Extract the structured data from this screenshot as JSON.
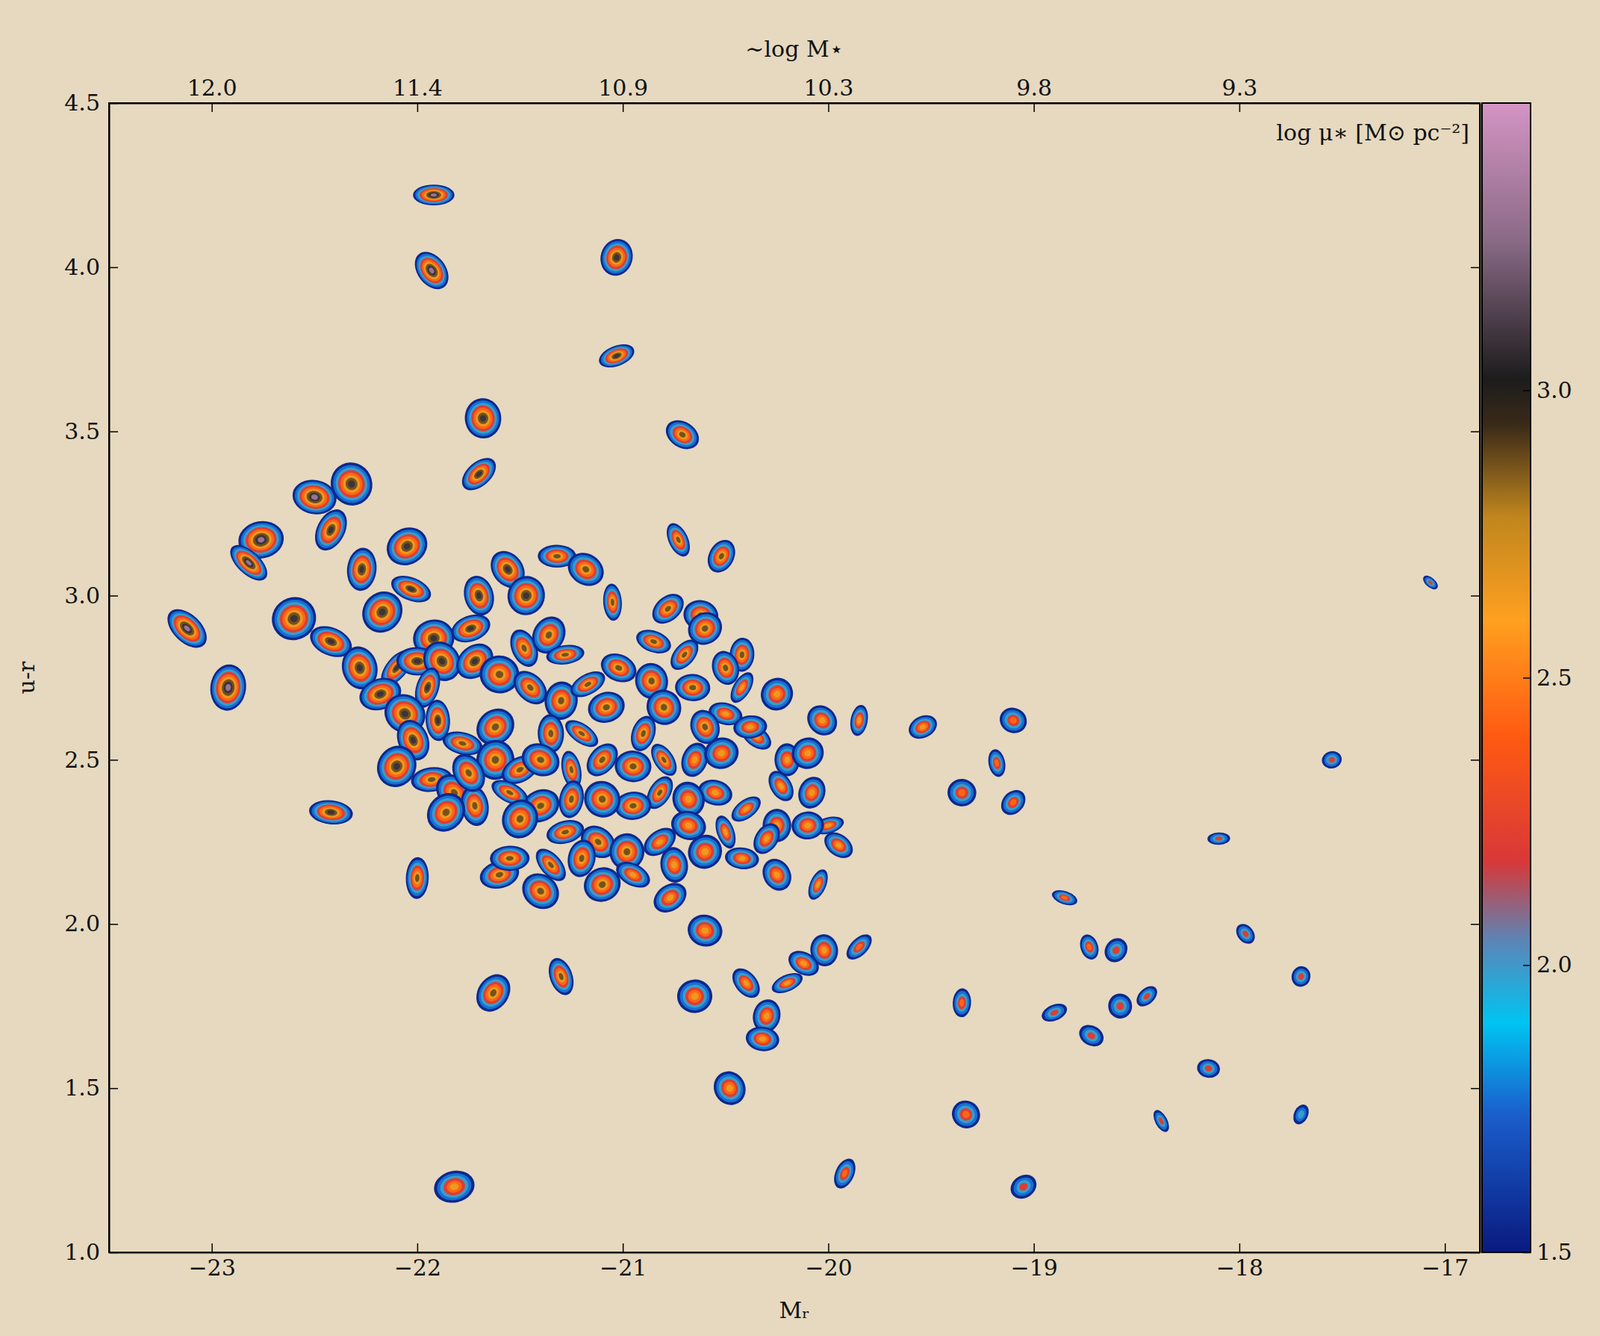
{
  "chart_data": {
    "type": "scatter",
    "xlabel": "Mᵣ",
    "ylabel": "u-r",
    "x2label": "∼log M⋆",
    "xlim": [
      -23.5,
      -16.83
    ],
    "ylim": [
      1.0,
      4.5
    ],
    "xticks": [
      {
        "value": -23,
        "label": "−23"
      },
      {
        "value": -22,
        "label": "−22"
      },
      {
        "value": -21,
        "label": "−21"
      },
      {
        "value": -20,
        "label": "−20"
      },
      {
        "value": -19,
        "label": "−19"
      },
      {
        "value": -18,
        "label": "−18"
      },
      {
        "value": -17,
        "label": "−17"
      }
    ],
    "x2ticks": [
      {
        "value": -23,
        "label": "12.0"
      },
      {
        "value": -22,
        "label": "11.4"
      },
      {
        "value": -21,
        "label": "10.9"
      },
      {
        "value": -20,
        "label": "10.3"
      },
      {
        "value": -19,
        "label": "9.8"
      },
      {
        "value": -18,
        "label": "9.3"
      }
    ],
    "yticks": [
      {
        "value": 1,
        "label": "1.0"
      },
      1.5,
      {
        "value": 2,
        "label": "2.0"
      },
      2.5,
      {
        "value": 3,
        "label": "3.0"
      },
      3.5,
      {
        "value": 4,
        "label": "4.0"
      },
      4.5
    ],
    "colorbar": {
      "label": "log μ∗ [M⊙ pc⁻²]",
      "lim": [
        1.5,
        3.5
      ],
      "ticks": [
        1.5,
        {
          "value": 2,
          "label": "2.0"
        },
        2.5,
        {
          "value": 3,
          "label": "3.0"
        }
      ]
    },
    "series": [
      {
        "marker": "galaxy",
        "x": [
          -21.92,
          -21.93,
          -21.03,
          -21.03,
          -20.71,
          -21.68,
          -21.7,
          -22.5,
          -22.32,
          -22.42,
          -22.76,
          -22.82,
          -22.27,
          -22.05,
          -22.03,
          -21.7,
          -22.17,
          -21.32,
          -21.56,
          -21.47,
          -21.74,
          -21.18,
          -21.05,
          -20.78,
          -20.62,
          -20.73,
          -20.52,
          -21.92,
          -23.12,
          -22.92,
          -22.6,
          -22.42,
          -22.28,
          -22.1,
          -22.0,
          -21.88,
          -21.95,
          -22.18,
          -22.06,
          -21.9,
          -21.72,
          -21.6,
          -21.48,
          -21.36,
          -21.28,
          -21.45,
          -21.3,
          -21.17,
          -21.02,
          -20.86,
          -20.7,
          -20.66,
          -20.8,
          -20.9,
          -21.08,
          -21.2,
          -21.35,
          -21.62,
          -21.78,
          -22.02,
          -22.1,
          -21.93,
          -21.82,
          -21.62,
          -21.5,
          -21.4,
          -21.25,
          -21.1,
          -20.95,
          -20.8,
          -20.65,
          -20.52,
          -20.35,
          -20.2,
          -20.1,
          -20.5,
          -20.6,
          -20.42,
          -20.38,
          -20.03,
          -19.85,
          -19.54,
          -19.1,
          -19.18,
          -19.1,
          -19.35,
          -20.23,
          -20.08,
          -20.0,
          -19.95,
          -20.25,
          -20.4,
          -20.55,
          -20.68,
          -20.82,
          -20.95,
          -21.1,
          -21.25,
          -21.4,
          -21.55,
          -21.72,
          -21.86,
          -22.42,
          -21.75,
          -21.5,
          -21.28,
          -21.12,
          -20.98,
          -20.82,
          -20.68,
          -20.5,
          -20.3,
          -20.1,
          -21.35,
          -21.2,
          -21.1,
          -20.95,
          -20.75,
          -20.6,
          -20.42,
          -20.25,
          -20.05,
          -21.6,
          -21.4,
          -22.0,
          -20.77,
          -20.6,
          -21.3,
          -21.63,
          -20.65,
          -20.4,
          -20.3,
          -20.2,
          -20.12,
          -20.02,
          -19.85,
          -20.32,
          -20.48,
          -19.92,
          -21.82,
          -19.33,
          -19.35,
          -19.05,
          -18.85,
          -18.73,
          -18.6,
          -18.1,
          -17.97,
          -17.7,
          -18.9,
          -18.72,
          -18.58,
          -18.45,
          -18.15,
          -18.38,
          -17.7,
          -17.55,
          -17.07,
          -20.42,
          -20.6,
          -20.85,
          -20.5,
          -20.25,
          -21.55
        ],
        "y": [
          4.22,
          3.99,
          4.03,
          3.73,
          3.49,
          3.54,
          3.37,
          3.3,
          3.34,
          3.2,
          3.17,
          3.1,
          3.08,
          3.15,
          3.02,
          3.0,
          2.95,
          3.12,
          3.08,
          3.0,
          2.9,
          3.08,
          2.98,
          2.96,
          2.94,
          3.17,
          3.12,
          2.87,
          2.9,
          2.72,
          2.93,
          2.86,
          2.78,
          2.78,
          2.8,
          2.8,
          2.72,
          2.7,
          2.64,
          2.62,
          2.8,
          2.76,
          2.84,
          2.88,
          2.82,
          2.72,
          2.68,
          2.73,
          2.78,
          2.74,
          2.82,
          2.72,
          2.66,
          2.58,
          2.66,
          2.58,
          2.58,
          2.6,
          2.55,
          2.56,
          2.48,
          2.44,
          2.4,
          2.5,
          2.47,
          2.5,
          2.47,
          2.5,
          2.48,
          2.5,
          2.5,
          2.52,
          2.57,
          2.5,
          2.52,
          2.64,
          2.6,
          2.72,
          2.6,
          2.62,
          2.62,
          2.6,
          2.62,
          2.49,
          2.37,
          2.4,
          2.42,
          2.4,
          2.3,
          2.24,
          2.3,
          2.35,
          2.4,
          2.38,
          2.4,
          2.36,
          2.38,
          2.38,
          2.36,
          2.4,
          2.36,
          2.34,
          2.34,
          2.46,
          2.32,
          2.28,
          2.25,
          2.22,
          2.25,
          2.3,
          2.28,
          2.26,
          2.3,
          2.18,
          2.2,
          2.12,
          2.15,
          2.18,
          2.22,
          2.2,
          2.15,
          2.12,
          2.15,
          2.1,
          2.14,
          2.08,
          1.98,
          1.84,
          1.79,
          1.78,
          1.82,
          1.72,
          1.82,
          1.88,
          1.92,
          1.93,
          1.65,
          1.5,
          1.24,
          1.2,
          1.42,
          1.76,
          1.2,
          2.08,
          1.93,
          1.92,
          2.26,
          1.97,
          1.84,
          1.73,
          1.66,
          1.75,
          1.78,
          1.56,
          1.4,
          1.42,
          2.5,
          3.04,
          2.82,
          2.9,
          2.86,
          2.78,
          2.7,
          2.2
        ]
      }
    ]
  }
}
